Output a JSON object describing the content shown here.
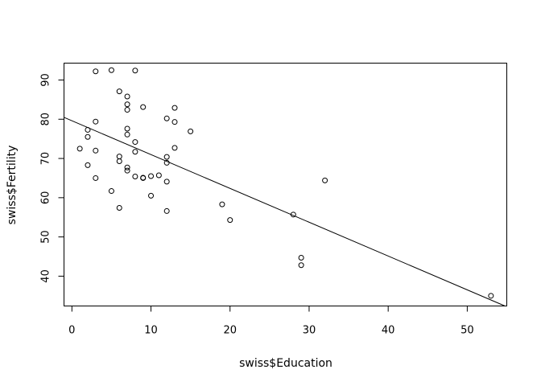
{
  "chart_data": {
    "type": "scatter",
    "title": "",
    "xlabel": "swiss$Education",
    "ylabel": "swiss$Fertility",
    "xlim": [
      -1,
      55
    ],
    "ylim": [
      32.4,
      94.3
    ],
    "x_ticks": [
      0,
      10,
      20,
      30,
      40,
      50
    ],
    "y_ticks": [
      40,
      50,
      60,
      70,
      80,
      90
    ],
    "grid": false,
    "marker": "open-circle",
    "regression_line": {
      "intercept": 79.61,
      "slope": -0.862
    },
    "points": [
      {
        "x": 12,
        "y": 80.2
      },
      {
        "x": 9,
        "y": 83.1
      },
      {
        "x": 5,
        "y": 92.5
      },
      {
        "x": 7,
        "y": 85.8
      },
      {
        "x": 15,
        "y": 76.9
      },
      {
        "x": 7,
        "y": 76.1
      },
      {
        "x": 7,
        "y": 83.8
      },
      {
        "x": 8,
        "y": 92.4
      },
      {
        "x": 7,
        "y": 82.4
      },
      {
        "x": 13,
        "y": 82.9
      },
      {
        "x": 6,
        "y": 87.1
      },
      {
        "x": 12,
        "y": 64.1
      },
      {
        "x": 7,
        "y": 66.9
      },
      {
        "x": 12,
        "y": 68.9
      },
      {
        "x": 5,
        "y": 61.7
      },
      {
        "x": 2,
        "y": 68.3
      },
      {
        "x": 8,
        "y": 71.7
      },
      {
        "x": 28,
        "y": 55.7
      },
      {
        "x": 20,
        "y": 54.3
      },
      {
        "x": 9,
        "y": 65.1
      },
      {
        "x": 10,
        "y": 65.5
      },
      {
        "x": 3,
        "y": 65.0
      },
      {
        "x": 12,
        "y": 56.6
      },
      {
        "x": 6,
        "y": 57.4
      },
      {
        "x": 1,
        "y": 72.5
      },
      {
        "x": 8,
        "y": 74.2
      },
      {
        "x": 3,
        "y": 72.0
      },
      {
        "x": 10,
        "y": 60.5
      },
      {
        "x": 19,
        "y": 58.3
      },
      {
        "x": 8,
        "y": 65.4
      },
      {
        "x": 2,
        "y": 75.5
      },
      {
        "x": 6,
        "y": 69.3
      },
      {
        "x": 2,
        "y": 77.3
      },
      {
        "x": 6,
        "y": 70.5
      },
      {
        "x": 3,
        "y": 79.4
      },
      {
        "x": 9,
        "y": 65.0
      },
      {
        "x": 3,
        "y": 92.2
      },
      {
        "x": 13,
        "y": 79.3
      },
      {
        "x": 12,
        "y": 70.4
      },
      {
        "x": 11,
        "y": 65.7
      },
      {
        "x": 13,
        "y": 72.7
      },
      {
        "x": 7,
        "y": 67.7
      },
      {
        "x": 7,
        "y": 77.6
      },
      {
        "x": 53,
        "y": 35.0
      },
      {
        "x": 29,
        "y": 44.7
      },
      {
        "x": 29,
        "y": 42.8
      },
      {
        "x": 32,
        "y": 64.4
      }
    ]
  }
}
